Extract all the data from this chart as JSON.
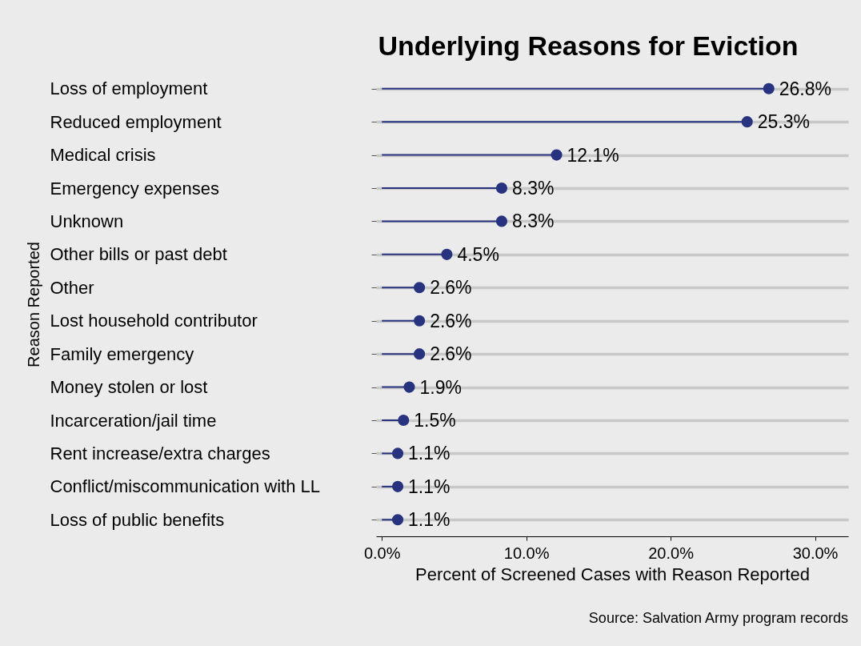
{
  "chart_data": {
    "type": "lollipop",
    "orientation": "horizontal",
    "title": "Underlying Reasons for Eviction",
    "xlabel": "Percent of Screened Cases with Reason Reported",
    "ylabel": "Reason Reported",
    "categories": [
      "Loss of employment",
      "Reduced employment",
      "Medical crisis",
      "Emergency expenses",
      "Unknown",
      "Other bills or past debt",
      "Other",
      "Lost household contributor",
      "Family emergency",
      "Money stolen or lost",
      "Incarceration/jail time",
      "Rent increase/extra charges",
      "Conflict/miscommunication with LL",
      "Loss of public benefits"
    ],
    "values": [
      26.8,
      25.3,
      12.1,
      8.3,
      8.3,
      4.5,
      2.6,
      2.6,
      2.6,
      1.9,
      1.5,
      1.1,
      1.1,
      1.1
    ],
    "value_labels": [
      "26.8%",
      "25.3%",
      "12.1%",
      "8.3%",
      "8.3%",
      "4.5%",
      "2.6%",
      "2.6%",
      "2.6%",
      "1.9%",
      "1.5%",
      "1.1%",
      "1.1%",
      "1.1%"
    ],
    "color": "#27337e",
    "marker": "circle",
    "grid": "y",
    "xlim": [
      -0.4,
      32.3
    ],
    "xticks": [
      {
        "value": 0,
        "label": "0.0%"
      },
      {
        "value": 10,
        "label": "10.0%"
      },
      {
        "value": 20,
        "label": "20.0%"
      },
      {
        "value": 30,
        "label": "30.0%"
      }
    ],
    "annotations": [
      "Source: Salvation Army program records"
    ]
  }
}
